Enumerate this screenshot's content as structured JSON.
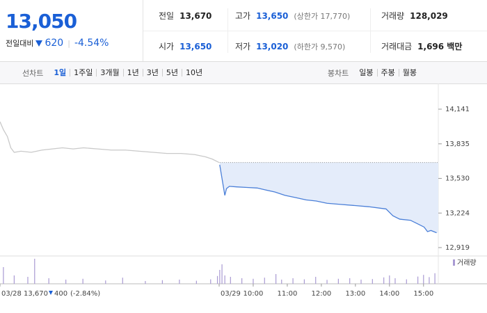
{
  "header": {
    "price": "13,050",
    "change_label": "전일대비",
    "change": "620",
    "change_rate": "-4.54%",
    "color": "#1a5fd6"
  },
  "stats": [
    {
      "label": "전일",
      "value": "13,670",
      "color": "#222222"
    },
    {
      "label": "고가",
      "value": "13,650",
      "note": "(상한가 17,770)",
      "color": "#1a5fd6"
    },
    {
      "label": "거래량",
      "value": "128,029",
      "color": "#222222"
    },
    {
      "label": "시가",
      "value": "13,650",
      "color": "#1a5fd6"
    },
    {
      "label": "저가",
      "value": "13,020",
      "note": "(하한가 9,570)",
      "color": "#1a5fd6"
    },
    {
      "label": "거래대금",
      "value": "1,696 백만",
      "color": "#222222"
    }
  ],
  "tabs": {
    "line_label": "선차트",
    "line_periods": [
      "1일",
      "1주일",
      "3개월",
      "1년",
      "3년",
      "5년",
      "10년"
    ],
    "selected_period": 0,
    "candle_label": "봉차트",
    "candle_periods": [
      "일봉",
      "주봉",
      "월봉"
    ]
  },
  "chart_data": {
    "type": "line",
    "series": [
      {
        "color": "#c9c9c9",
        "x": [
          -386,
          -380,
          -373,
          -367,
          -361,
          -349,
          -331,
          -312,
          -294,
          -276,
          -257,
          -239,
          -214,
          -190,
          -165,
          -141,
          -116,
          -92,
          -67,
          -43,
          -24,
          -12,
          0
        ],
        "values": [
          14030,
          13960,
          13900,
          13800,
          13760,
          13770,
          13760,
          13780,
          13790,
          13800,
          13790,
          13800,
          13790,
          13780,
          13780,
          13770,
          13760,
          13750,
          13750,
          13740,
          13720,
          13700,
          13670
        ]
      },
      {
        "color": "#4a7fd8",
        "fill": "#e4ecfa",
        "x": [
          1,
          6,
          10,
          13,
          18,
          31,
          49,
          67,
          80,
          98,
          116,
          135,
          153,
          171,
          190,
          214,
          239,
          263,
          294,
          306,
          318,
          337,
          349,
          361,
          367,
          373,
          383
        ],
        "values": [
          13650,
          13500,
          13380,
          13440,
          13460,
          13455,
          13450,
          13445,
          13430,
          13410,
          13380,
          13360,
          13340,
          13330,
          13310,
          13300,
          13290,
          13280,
          13260,
          13200,
          13170,
          13160,
          13130,
          13100,
          13060,
          13070,
          13050
        ]
      }
    ],
    "baseline": 13670,
    "prev_summary": {
      "close": "13,670",
      "change": "400",
      "rate": "(-2.84%)",
      "color": "#1a5fd6"
    },
    "volume": {
      "name": "거래량",
      "color": "#a99ad3",
      "x": [
        -380,
        -361,
        -337,
        -325,
        -300,
        -270,
        -240,
        -200,
        -170,
        -130,
        -100,
        -70,
        -40,
        -15,
        -3,
        1,
        5,
        10,
        20,
        40,
        60,
        80,
        100,
        110,
        130,
        150,
        170,
        190,
        210,
        230,
        250,
        270,
        290,
        300,
        310,
        330,
        350,
        360,
        370,
        380
      ],
      "values": [
        6000,
        3000,
        2500,
        9000,
        2000,
        1500,
        1800,
        1200,
        2200,
        1000,
        1300,
        1500,
        1100,
        1600,
        2800,
        5000,
        7000,
        3000,
        2500,
        2000,
        1800,
        2200,
        3500,
        1500,
        2000,
        1600,
        2500,
        1400,
        1800,
        2000,
        1500,
        1700,
        2300,
        3000,
        2000,
        1600,
        2600,
        3200,
        2400,
        3800
      ]
    },
    "xlim": [
      -386,
      386
    ],
    "xticks": [
      {
        "value": -386,
        "label": "03/28"
      },
      {
        "value": 0,
        "label": "03/29"
      },
      {
        "value": 60,
        "label": "10:00"
      },
      {
        "value": 120,
        "label": "11:00"
      },
      {
        "value": 180,
        "label": "12:00"
      },
      {
        "value": 240,
        "label": "13:00"
      },
      {
        "value": 300,
        "label": "14:00"
      },
      {
        "value": 360,
        "label": "15:00"
      }
    ],
    "ylim": [
      12845,
      14368
    ],
    "yticks": [
      {
        "value": 12919,
        "label": "12,919"
      },
      {
        "value": 13224,
        "label": "13,224"
      },
      {
        "value": 13530,
        "label": "13,530"
      },
      {
        "value": 13835,
        "label": "13,835"
      },
      {
        "value": 14141,
        "label": "14,141"
      }
    ]
  }
}
